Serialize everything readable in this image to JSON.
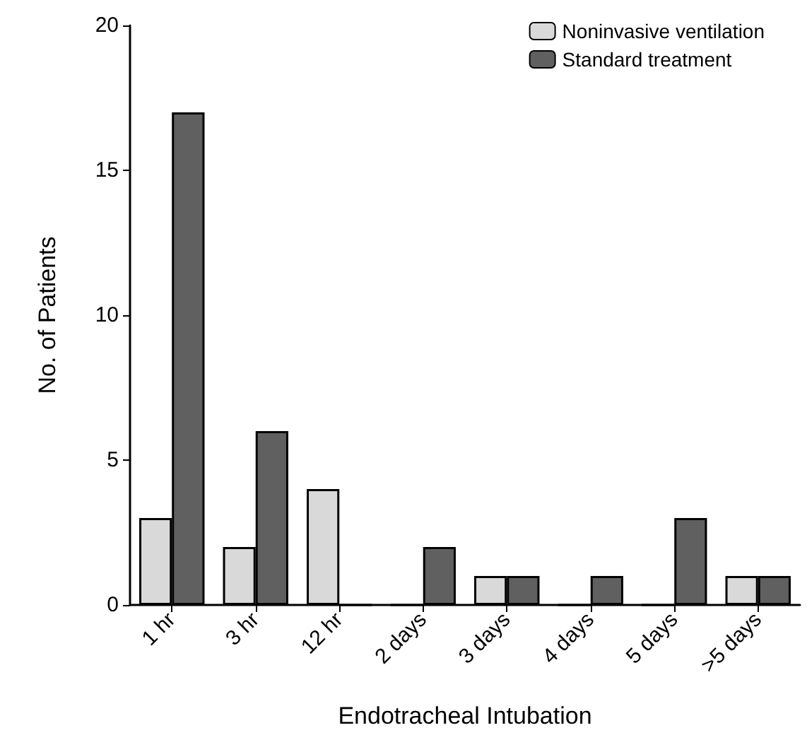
{
  "chart_data": {
    "type": "bar",
    "xlabel": "Endotracheal Intubation",
    "ylabel": "No. of Patients",
    "categories": [
      "1 hr",
      "3 hr",
      "12 hr",
      "2 days",
      "3 days",
      "4 days",
      "5 days",
      ">5 days"
    ],
    "series": [
      {
        "name": "Noninvasive ventilation",
        "color": "#d9d9d9",
        "values": [
          3,
          2,
          4,
          0,
          1,
          0,
          0,
          1
        ]
      },
      {
        "name": "Standard treatment",
        "color": "#606060",
        "values": [
          17,
          6,
          0,
          2,
          1,
          1,
          3,
          1
        ]
      }
    ],
    "ylim": [
      0,
      20
    ],
    "yticks": [
      0,
      5,
      10,
      15,
      20
    ],
    "grid": false,
    "legend": "top right"
  }
}
